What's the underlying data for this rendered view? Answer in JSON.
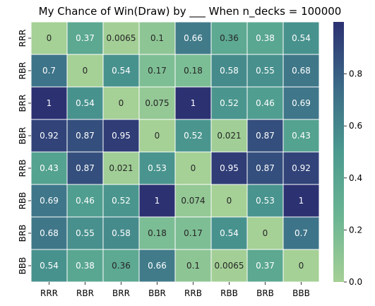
{
  "chart_data": {
    "type": "heatmap",
    "title": "My Chance of Win(Draw) by ___ When n_decks = 100000",
    "xlabel": "",
    "ylabel": "",
    "x_categories": [
      "RRR",
      "RBR",
      "BRR",
      "BBR",
      "RRB",
      "RBB",
      "BRB",
      "BBB"
    ],
    "y_categories": [
      "RRR",
      "RBR",
      "BRR",
      "BBR",
      "RRB",
      "RBB",
      "BRB",
      "BBB"
    ],
    "values": [
      [
        0,
        0.37,
        0.0065,
        0.1,
        0.66,
        0.36,
        0.38,
        0.54
      ],
      [
        0.7,
        0,
        0.54,
        0.17,
        0.18,
        0.58,
        0.55,
        0.68
      ],
      [
        1,
        0.54,
        0,
        0.075,
        1,
        0.52,
        0.46,
        0.69
      ],
      [
        0.92,
        0.87,
        0.95,
        0,
        0.52,
        0.021,
        0.87,
        0.43
      ],
      [
        0.43,
        0.87,
        0.021,
        0.53,
        0,
        0.95,
        0.87,
        0.92
      ],
      [
        0.69,
        0.46,
        0.52,
        1,
        0.074,
        0,
        0.53,
        1
      ],
      [
        0.68,
        0.55,
        0.58,
        0.18,
        0.17,
        0.54,
        0,
        0.7
      ],
      [
        0.54,
        0.38,
        0.36,
        0.66,
        0.1,
        0.0065,
        0.37,
        0
      ]
    ],
    "value_range": [
      0,
      1
    ],
    "colorbar": {
      "ticks": [
        0.0,
        0.2,
        0.4,
        0.6,
        0.8
      ],
      "tick_labels": [
        "0.0",
        "0.2",
        "0.4",
        "0.6",
        "0.8"
      ]
    },
    "colormap": "crest",
    "colormap_stops": [
      "#a5d096",
      "#4b9a8f",
      "#2c3172"
    ],
    "annotations": true,
    "grid": false
  }
}
